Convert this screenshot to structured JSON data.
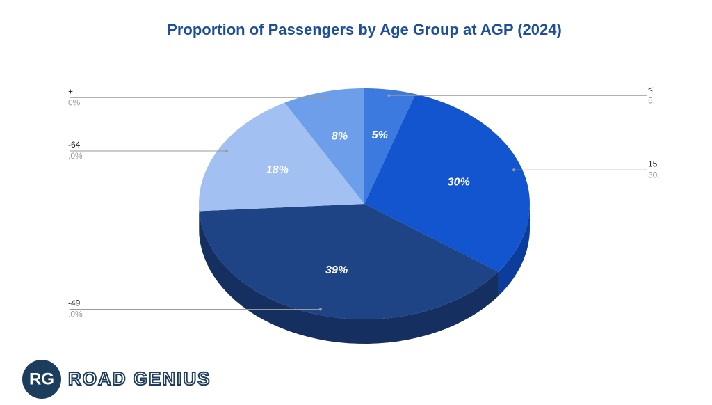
{
  "chart_data": {
    "type": "pie3d",
    "title": "Proportion of Passengers by Age Group at AGP (2024)",
    "categories": [
      "<",
      "15",
      "-49",
      "-64",
      "+"
    ],
    "values": [
      5,
      30,
      39,
      18,
      8
    ],
    "value_labels": [
      "5%",
      "30%",
      "39%",
      "18%",
      "8%"
    ],
    "callout_value_labels": [
      "5.",
      "30.",
      ".0%",
      ".0%",
      "0%"
    ],
    "colors": [
      "#3d7ae0",
      "#1255cf",
      "#1f4486",
      "#a3c0f2",
      "#6d9eea"
    ],
    "side_colors": [
      "#2b5cb0",
      "#0c3d9c",
      "#152f60",
      "#7c95c0",
      "#4f78b8"
    ]
  },
  "brand": {
    "mark": "RG",
    "name": "ROAD GENIUS"
  }
}
